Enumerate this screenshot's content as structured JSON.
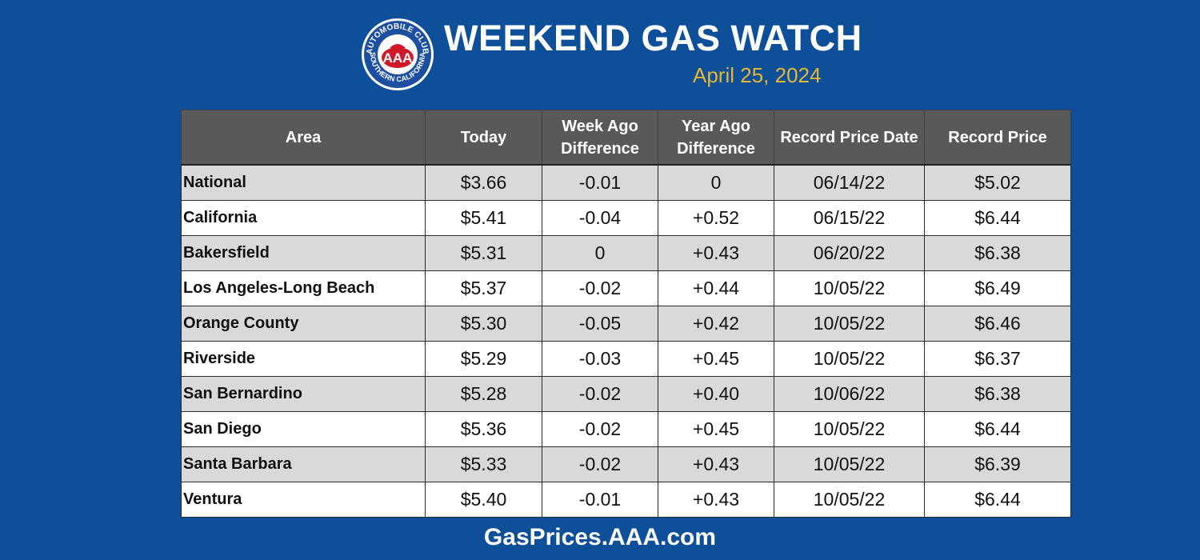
{
  "header": {
    "logo": {
      "top_text": "AUTOMOBILE CLUB",
      "bottom_text": "SOUTHERN CALIFORNIA",
      "center_text": "AAA",
      "colors": {
        "blue": "#1d4fa0",
        "red": "#d0182b",
        "white": "#ffffff"
      }
    },
    "title": "WEEKEND GAS WATCH",
    "date": "April 25, 2024"
  },
  "table": {
    "columns": [
      "Area",
      "Today",
      "Week Ago Difference",
      "Year Ago Difference",
      "Record Price Date",
      "Record Price"
    ],
    "rows": [
      {
        "area": "National",
        "today": "$3.66",
        "week_diff": "-0.01",
        "year_diff": "0",
        "record_date": "06/14/22",
        "record_price": "$5.02"
      },
      {
        "area": "California",
        "today": "$5.41",
        "week_diff": "-0.04",
        "year_diff": "+0.52",
        "record_date": "06/15/22",
        "record_price": "$6.44"
      },
      {
        "area": "Bakersfield",
        "today": "$5.31",
        "week_diff": "0",
        "year_diff": "+0.43",
        "record_date": "06/20/22",
        "record_price": "$6.38"
      },
      {
        "area": "Los Angeles-Long Beach",
        "today": "$5.37",
        "week_diff": "-0.02",
        "year_diff": "+0.44",
        "record_date": "10/05/22",
        "record_price": "$6.49"
      },
      {
        "area": "Orange County",
        "today": "$5.30",
        "week_diff": "-0.05",
        "year_diff": "+0.42",
        "record_date": "10/05/22",
        "record_price": "$6.46"
      },
      {
        "area": "Riverside",
        "today": "$5.29",
        "week_diff": "-0.03",
        "year_diff": "+0.45",
        "record_date": "10/05/22",
        "record_price": "$6.37"
      },
      {
        "area": "San Bernardino",
        "today": "$5.28",
        "week_diff": "-0.02",
        "year_diff": "+0.40",
        "record_date": "10/06/22",
        "record_price": "$6.38"
      },
      {
        "area": "San Diego",
        "today": "$5.36",
        "week_diff": "-0.02",
        "year_diff": "+0.45",
        "record_date": "10/05/22",
        "record_price": "$6.44"
      },
      {
        "area": "Santa Barbara",
        "today": "$5.33",
        "week_diff": "-0.02",
        "year_diff": "+0.43",
        "record_date": "10/05/22",
        "record_price": "$6.39"
      },
      {
        "area": "Ventura",
        "today": "$5.40",
        "week_diff": "-0.01",
        "year_diff": "+0.43",
        "record_date": "10/05/22",
        "record_price": "$6.44"
      }
    ]
  },
  "footer": {
    "url": "GasPrices.AAA.com"
  },
  "colors": {
    "background": "#0d4f98",
    "header_row": "#595959",
    "row_shade": "#d9d9d9",
    "date_text": "#e6b735"
  }
}
